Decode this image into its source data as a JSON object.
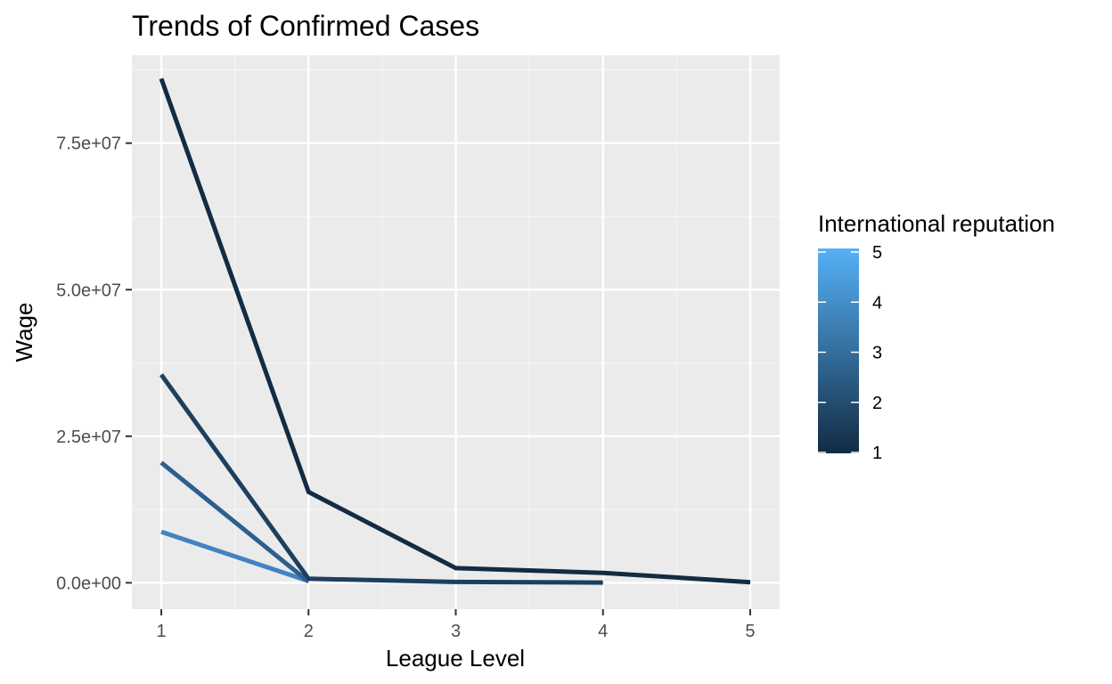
{
  "chart_data": {
    "type": "line",
    "title": "Trends of Confirmed Cases",
    "xlabel": "League Level",
    "ylabel": "Wage",
    "x_ticks": [
      1,
      2,
      3,
      4,
      5
    ],
    "x_tick_labels": [
      "1",
      "2",
      "3",
      "4",
      "5"
    ],
    "y_ticks": [
      0,
      25000000,
      50000000,
      75000000
    ],
    "y_tick_labels": [
      "0.0e+00",
      "2.5e+07",
      "5.0e+07",
      "7.5e+07"
    ],
    "xlim": [
      0.8,
      5.2
    ],
    "ylim": [
      -4500000,
      90000000
    ],
    "grid": true,
    "legend": {
      "title": "International reputation",
      "placement": "right",
      "type": "colorbar",
      "ticks": [
        1,
        2,
        3,
        4,
        5
      ],
      "tick_labels": [
        "1",
        "2",
        "3",
        "4",
        "5"
      ],
      "low_color": "#132b43",
      "high_color": "#56b1f7"
    },
    "series": [
      {
        "reputation": 1,
        "color": "#132b43",
        "points": [
          [
            1,
            86000000
          ],
          [
            2,
            15500000
          ],
          [
            3,
            2500000
          ],
          [
            4,
            1700000
          ],
          [
            5,
            100000
          ]
        ]
      },
      {
        "reputation": 2,
        "color": "#1d3f5f",
        "points": [
          [
            1,
            35500000
          ],
          [
            2,
            700000
          ],
          [
            3,
            150000
          ],
          [
            4,
            50000
          ]
        ]
      },
      {
        "reputation": 3,
        "color": "#2d5f8e",
        "points": [
          [
            1,
            20500000
          ],
          [
            2,
            200000
          ]
        ]
      },
      {
        "reputation": 4,
        "color": "#3f83c3",
        "points": [
          [
            1,
            8700000
          ],
          [
            2,
            300000
          ]
        ]
      }
    ]
  }
}
